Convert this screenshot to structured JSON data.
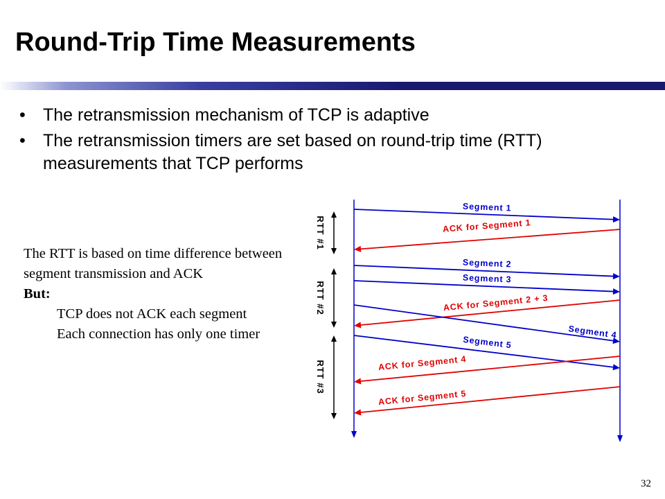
{
  "slide": {
    "title": "Round-Trip Time Measurements",
    "bullets": [
      "The retransmission mechanism of TCP is adaptive",
      "The retransmission timers are set based on round-trip time (RTT) measurements that TCP performs"
    ],
    "note": {
      "line1": "The RTT is based on time difference between segment transmission and ACK",
      "but_label": "But:",
      "points": [
        "TCP does not ACK each segment",
        "Each connection has only one timer"
      ]
    },
    "slide_number": "32"
  },
  "diagram": {
    "rtt_labels": [
      "RTT #1",
      "RTT #2",
      "RTT #3"
    ],
    "segment_color": "#0000c8",
    "ack_color": "#e00000",
    "messages": [
      {
        "label": "Segment 1",
        "kind": "segment"
      },
      {
        "label": "ACK for Segment 1",
        "kind": "ack"
      },
      {
        "label": "Segment 2",
        "kind": "segment"
      },
      {
        "label": "Segment 3",
        "kind": "segment"
      },
      {
        "label": "ACK for Segment 2 + 3",
        "kind": "ack"
      },
      {
        "label": "Segment 4",
        "kind": "segment"
      },
      {
        "label": "Segment 5",
        "kind": "segment"
      },
      {
        "label": "ACK for Segment 4",
        "kind": "ack"
      },
      {
        "label": "ACK for Segment 5",
        "kind": "ack"
      }
    ]
  }
}
